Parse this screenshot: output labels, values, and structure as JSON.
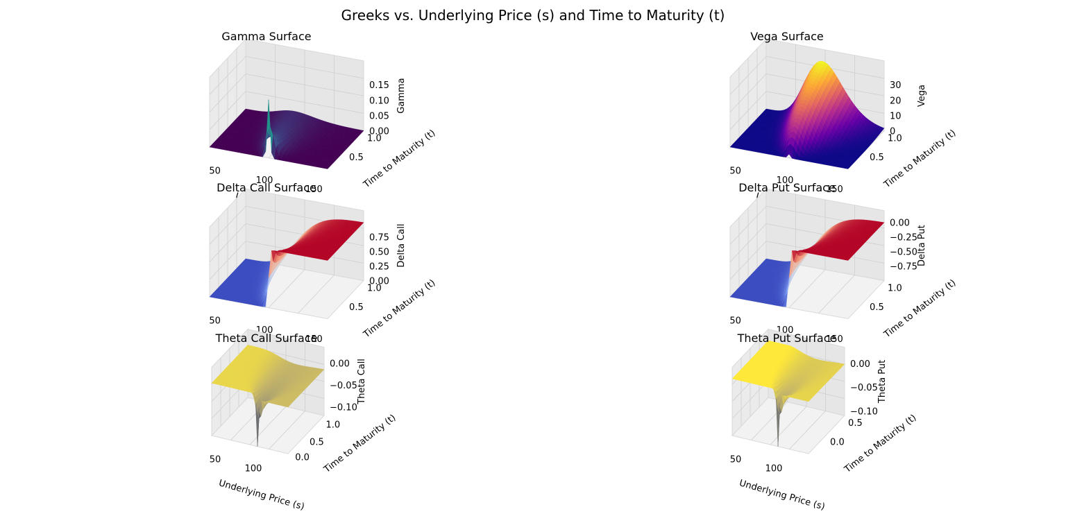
{
  "figure": {
    "title": "Greeks vs. Underlying Price (s) and Time to Maturity (t)"
  },
  "chart_data": [
    {
      "type": "surface",
      "title": "Gamma Surface",
      "xlabel": "Underlying Price (s)",
      "ylabel": "Time to Maturity (t)",
      "zlabel": "Gamma",
      "xlim": [
        40,
        160
      ],
      "ylim": [
        0,
        1
      ],
      "zlim": [
        0,
        0.19
      ],
      "xticks": [
        "50",
        "100",
        "150"
      ],
      "yticks": [
        "0.5",
        "1.0"
      ],
      "zticks": [
        "0.00",
        "0.05",
        "0.10",
        "0.15"
      ],
      "colormap": "viridis",
      "colors": [
        "#440154",
        "#3b528b",
        "#21918c",
        "#5ec962",
        "#fde725"
      ],
      "peak": {
        "s": 100,
        "t": 0.0,
        "value": 0.19
      }
    },
    {
      "type": "surface",
      "title": "Vega Surface",
      "xlabel": "Underlying Price (s)",
      "ylabel": "Time to Maturity (t)",
      "zlabel": "Vega",
      "xlim": [
        40,
        160
      ],
      "ylim": [
        0,
        1
      ],
      "zlim": [
        0,
        38
      ],
      "xticks": [
        "50",
        "100",
        "150"
      ],
      "yticks": [
        "0.5",
        "1.0"
      ],
      "zticks": [
        "0",
        "10",
        "20",
        "30"
      ],
      "colormap": "plasma",
      "colors": [
        "#0d0887",
        "#6a00a8",
        "#b12a90",
        "#e16462",
        "#fca636",
        "#f0f921"
      ],
      "peak": {
        "s": 100,
        "t": 1.0,
        "value": 38
      }
    },
    {
      "type": "surface",
      "title": "Delta Call Surface",
      "xlabel": "Underlying Price (s)",
      "ylabel": "Time to Maturity (t)",
      "zlabel": "Delta Call",
      "xlim": [
        40,
        160
      ],
      "ylim": [
        0,
        1
      ],
      "zlim": [
        0,
        1
      ],
      "xticks": [
        "50",
        "100",
        "150"
      ],
      "yticks": [
        "0.5",
        "1.0"
      ],
      "zticks": [
        "0.00",
        "0.25",
        "0.50",
        "0.75"
      ],
      "colormap": "coolwarm",
      "colors": [
        "#3b4cc0",
        "#8db0fe",
        "#dddddd",
        "#f49a7b",
        "#b40426"
      ]
    },
    {
      "type": "surface",
      "title": "Delta Put Surface",
      "xlabel": "Underlying Price (s)",
      "ylabel": "Time to Maturity (t)",
      "zlabel": "Delta Put",
      "xlim": [
        40,
        160
      ],
      "ylim": [
        0,
        1
      ],
      "zlim": [
        -1,
        0
      ],
      "xticks": [
        "50",
        "100",
        "150"
      ],
      "yticks": [
        "0.5",
        "1.0"
      ],
      "zticks": [
        "0.00",
        "−0.25",
        "−0.50",
        "−0.75"
      ],
      "colormap": "coolwarm",
      "colors": [
        "#3b4cc0",
        "#8db0fe",
        "#dddddd",
        "#f49a7b",
        "#b40426"
      ]
    },
    {
      "type": "surface",
      "title": "Theta Call Surface",
      "xlabel": "Underlying Price (s)",
      "ylabel": "Time to Maturity (t)",
      "zlabel": "Theta Call",
      "xlim": [
        40,
        140
      ],
      "ylim": [
        0,
        1
      ],
      "zlim": [
        -0.12,
        0.01
      ],
      "xticks": [
        "50",
        "100"
      ],
      "yticks": [
        "0.0",
        "0.5",
        "1.0"
      ],
      "zticks": [
        "0.00",
        "−0.05",
        "−0.10"
      ],
      "colormap": "cividis",
      "colors": [
        "#00224e",
        "#35456c",
        "#666970",
        "#948e77",
        "#c8b866",
        "#fee838"
      ],
      "trough": {
        "s": 100,
        "t": 0.0,
        "value": -0.12
      }
    },
    {
      "type": "surface",
      "title": "Theta Put Surface",
      "xlabel": "Underlying Price (s)",
      "ylabel": "Time to Maturity (t)",
      "zlabel": "Theta Put",
      "xlim": [
        40,
        140
      ],
      "ylim": [
        0,
        1
      ],
      "zlim": [
        -0.11,
        0.01
      ],
      "xticks": [
        "50",
        "100"
      ],
      "yticks": [
        "0.0",
        "0.5"
      ],
      "zticks": [
        "0.00",
        "−0.05",
        "−0.10"
      ],
      "colormap": "cividis",
      "colors": [
        "#00224e",
        "#35456c",
        "#666970",
        "#948e77",
        "#c8b866",
        "#fee838"
      ],
      "trough": {
        "s": 100,
        "t": 0.0,
        "value": -0.11
      }
    }
  ]
}
